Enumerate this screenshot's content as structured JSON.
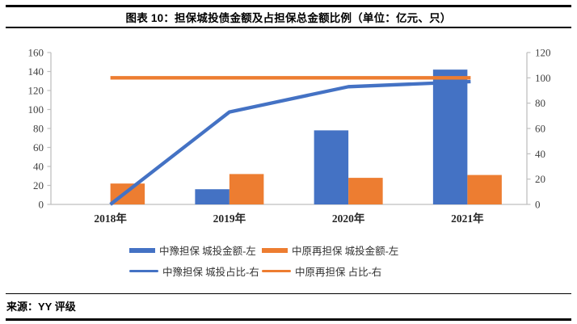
{
  "header": {
    "title": "图表 10：担保城投债金额及占担保总金额比例（单位：亿元、只）"
  },
  "footer": {
    "source": "来源：YY 评级"
  },
  "colors": {
    "blue": "#4472C4",
    "orange": "#ED7D31",
    "axis_line": "#BFBFBF",
    "axis_text": "#404040",
    "rule": "#000000"
  },
  "chart_data": {
    "type": "bar",
    "subtype": "grouped bars with overlay lines (dual axis)",
    "categories": [
      "2018年",
      "2019年",
      "2020年",
      "2021年"
    ],
    "series": [
      {
        "name": "中豫担保 城投金额-左",
        "type": "bar",
        "axis": "left",
        "color": "#4472C4",
        "values": [
          0,
          16,
          78,
          142
        ]
      },
      {
        "name": "中原再担保 城投金额-左",
        "type": "bar",
        "axis": "left",
        "color": "#ED7D31",
        "values": [
          22,
          32,
          28,
          31
        ]
      },
      {
        "name": "中豫担保 城投占比-右",
        "type": "line",
        "axis": "right",
        "color": "#4472C4",
        "values": [
          0,
          73,
          93,
          97
        ]
      },
      {
        "name": "中原再担保 占比-右",
        "type": "line",
        "axis": "right",
        "color": "#ED7D31",
        "values": [
          100,
          100,
          100,
          100
        ]
      }
    ],
    "left_axis": {
      "min": 0,
      "max": 160,
      "step": 20,
      "tick_labels": [
        "0",
        "20",
        "40",
        "60",
        "80",
        "100",
        "120",
        "140",
        "160"
      ]
    },
    "right_axis": {
      "min": 0,
      "max": 120,
      "step": 20,
      "tick_labels": [
        "0",
        "20",
        "40",
        "60",
        "80",
        "100",
        "120"
      ]
    },
    "grid": false,
    "legend_position": "bottom"
  }
}
